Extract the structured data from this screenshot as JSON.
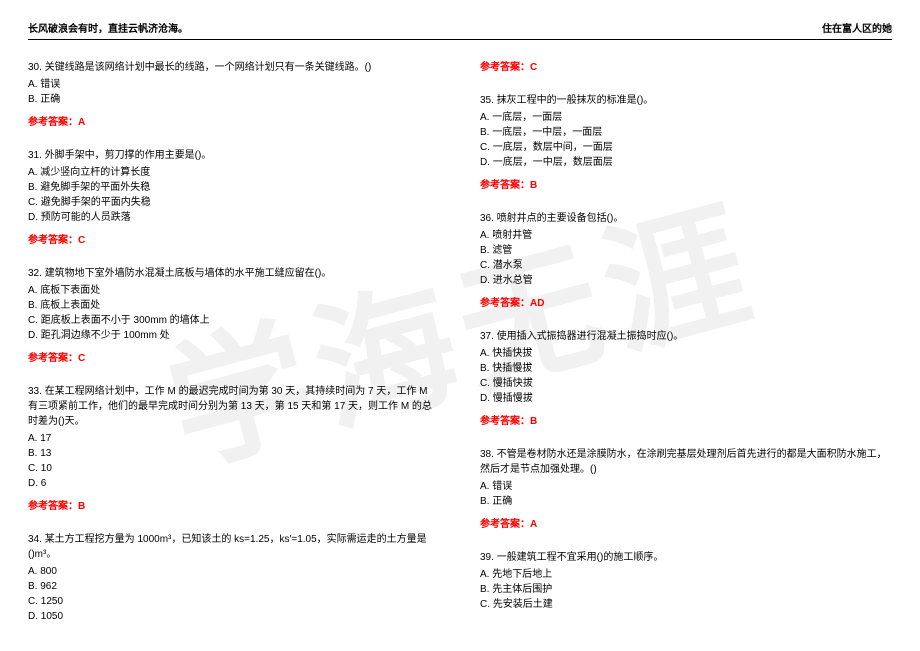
{
  "header": {
    "left": "长风破浪会有时，直挂云帆济沧海。",
    "right": "住在富人区的她"
  },
  "watermark": "学海无涯",
  "colors": {
    "answer_color": "#ff0000",
    "text_color": "#000000",
    "watermark_color": "rgba(200,200,200,0.25)"
  },
  "left_column": {
    "questions": [
      {
        "num": "30.",
        "text": "关键线路是该网络计划中最长的线路，一个网络计划只有一条关键线路。()",
        "options": [
          "A. 错误",
          "B. 正确"
        ],
        "answer": "参考答案：A"
      },
      {
        "num": "31.",
        "text": "外脚手架中，剪刀撑的作用主要是()。",
        "options": [
          "A. 减少竖向立杆的计算长度",
          "B. 避免脚手架的平面外失稳",
          "C. 避免脚手架的平面内失稳",
          "D. 预防可能的人员跌落"
        ],
        "answer": "参考答案：C"
      },
      {
        "num": "32.",
        "text": "建筑物地下室外墙防水混凝土底板与墙体的水平施工缝应留在()。",
        "options": [
          "A. 底板下表面处",
          "B. 底板上表面处",
          "C. 距底板上表面不小于 300mm 的墙体上",
          "D. 距孔洞边缘不少于 100mm 处"
        ],
        "answer": "参考答案：C"
      },
      {
        "num": "33.",
        "text": "在某工程网络计划中，工作 M 的最迟完成时间为第 30 天，其持续时间为 7 天，工作 M 有三项紧前工作，他们的最早完成时间分别为第 13 天，第 15 天和第 17 天，则工作 M 的总时差为()天。",
        "options": [
          "A. 17",
          "B. 13",
          "C. 10",
          "D. 6"
        ],
        "answer": "参考答案：B"
      },
      {
        "num": "34.",
        "text": "某土方工程挖方量为 1000m³，已知该土的 ks=1.25，ks'=1.05，实际需运走的土方量是()m³。",
        "options": [
          "A. 800",
          "B. 962",
          "C. 1250",
          "D. 1050"
        ],
        "answer": ""
      }
    ]
  },
  "right_column": {
    "top_answer": "参考答案：C",
    "questions": [
      {
        "num": "35.",
        "text": "抹灰工程中的一般抹灰的标准是()。",
        "options": [
          "A. 一底层，一面层",
          "B. 一底层，一中层，一面层",
          "C. 一底层，数层中间，一面层",
          "D. 一底层，一中层，数层面层"
        ],
        "answer": "参考答案：B"
      },
      {
        "num": "36.",
        "text": "喷射井点的主要设备包括()。",
        "options": [
          "A. 喷射井管",
          "B. 滤管",
          "C. 潜水泵",
          "D. 进水总管"
        ],
        "answer": "参考答案：AD"
      },
      {
        "num": "37.",
        "text": "使用插入式振捣器进行混凝土振捣时应()。",
        "options": [
          "A. 快插快拔",
          "B. 快插慢拔",
          "C. 慢插快拔",
          "D. 慢插慢拔"
        ],
        "answer": "参考答案：B"
      },
      {
        "num": "38.",
        "text": "不管是卷材防水还是涂膜防水，在涂刷完基层处理剂后首先进行的都是大面积防水施工，然后才是节点加强处理。()",
        "options": [
          "A. 错误",
          "B. 正确"
        ],
        "answer": "参考答案：A"
      },
      {
        "num": "39.",
        "text": "一般建筑工程不宜采用()的施工顺序。",
        "options": [
          "A. 先地下后地上",
          "B. 先主体后围护",
          "C. 先安装后土建"
        ],
        "answer": ""
      }
    ]
  }
}
